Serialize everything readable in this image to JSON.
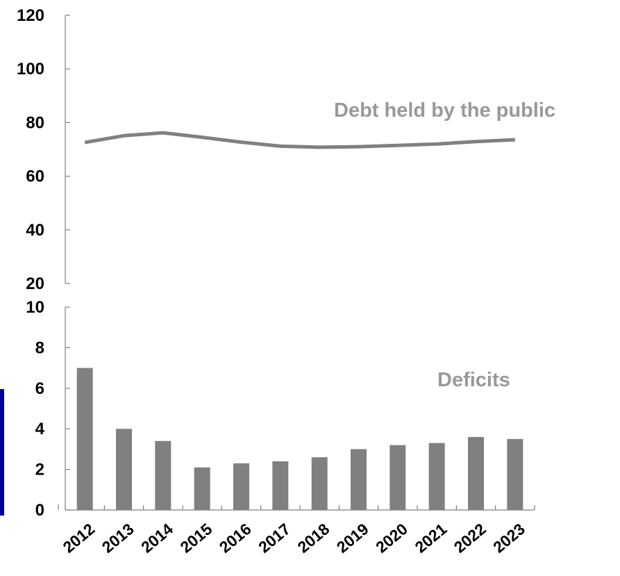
{
  "chart_data": [
    {
      "type": "line",
      "x": [
        "2012",
        "2013",
        "2014",
        "2015",
        "2016",
        "2017",
        "2018",
        "2019",
        "2020",
        "2021",
        "2022",
        "2023"
      ],
      "series": [
        {
          "name": "Debt held by the public",
          "values": [
            72.6,
            75.1,
            76.2,
            74.5,
            72.7,
            71.2,
            70.8,
            71.0,
            71.5,
            72.0,
            72.9,
            73.6
          ],
          "color": "#808080"
        }
      ],
      "yticks": [
        "120",
        "100",
        "80",
        "60",
        "40",
        "20"
      ],
      "ylim": [
        20,
        120
      ]
    },
    {
      "type": "bar",
      "categories": [
        "2012",
        "2013",
        "2014",
        "2015",
        "2016",
        "2017",
        "2018",
        "2019",
        "2020",
        "2021",
        "2022",
        "2023"
      ],
      "series": [
        {
          "name": "Deficits",
          "values": [
            7.0,
            4.0,
            3.4,
            2.1,
            2.3,
            2.4,
            2.6,
            3.0,
            3.2,
            3.3,
            3.6,
            3.5
          ],
          "color": "#808080"
        }
      ],
      "yticks": [
        "10",
        "8",
        "6",
        "4",
        "2",
        "0"
      ],
      "ylim": [
        0,
        10
      ]
    }
  ],
  "colors": {
    "series": "#808080",
    "axis": "#808080",
    "text": "#000000",
    "edge_accent": "#000099"
  }
}
